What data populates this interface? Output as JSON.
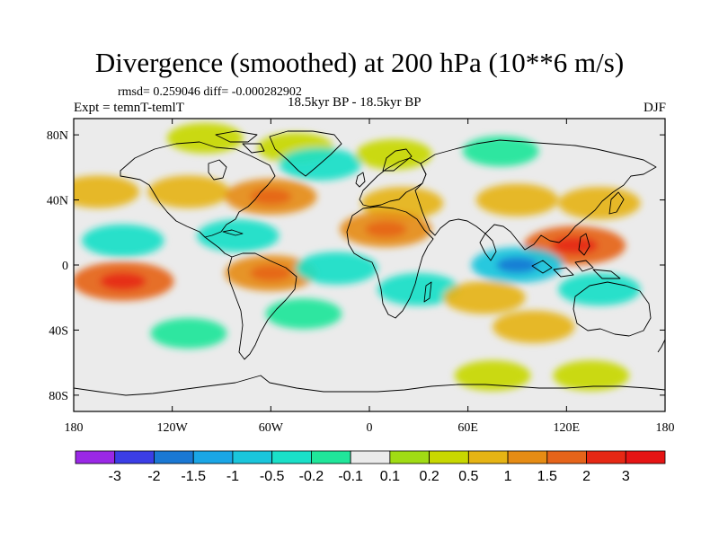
{
  "figure": {
    "title": "Divergence (smoothed) at 200 hPa (10**6 m/s)",
    "stats": "rmsd= 0.259046 diff= -0.000282902",
    "experiment": "Expt = temnT-temlT",
    "period": "18.5kyr BP - 18.5kyr BP",
    "season": "DJF"
  },
  "map": {
    "projection": "cylindrical equidistant",
    "lon_range": [
      -180,
      180
    ],
    "lat_range": [
      -90,
      90
    ],
    "lat_ticks": [
      {
        "label": "80N",
        "lat": 80
      },
      {
        "label": "40N",
        "lat": 40
      },
      {
        "label": "0",
        "lat": 0
      },
      {
        "label": "40S",
        "lat": -40
      },
      {
        "label": "80S",
        "lat": -80
      }
    ],
    "lon_ticks": [
      {
        "label": "180",
        "lon": -180
      },
      {
        "label": "120W",
        "lon": -120
      },
      {
        "label": "60W",
        "lon": -60
      },
      {
        "label": "0",
        "lon": 0
      },
      {
        "label": "60E",
        "lon": 60
      },
      {
        "label": "120E",
        "lon": 120
      },
      {
        "label": "180",
        "lon": 180
      }
    ],
    "background_color": "#ebebeb",
    "coastline_color": "#000000",
    "field_regions": [
      {
        "name": "greenland-high",
        "lon": -45,
        "lat": 72,
        "level": 0.2
      },
      {
        "name": "arctic-band",
        "lon": -100,
        "lat": 78,
        "level": 0.2
      },
      {
        "name": "north-atlantic-neg",
        "lon": -30,
        "lat": 62,
        "level": -0.5
      },
      {
        "name": "scandinavia-pos",
        "lon": 15,
        "lat": 68,
        "level": 0.2
      },
      {
        "name": "siberia-neg",
        "lon": 80,
        "lat": 70,
        "level": -0.2
      },
      {
        "name": "north-pacific-pos",
        "lon": -165,
        "lat": 45,
        "level": 0.5
      },
      {
        "name": "west-us-pos",
        "lon": -110,
        "lat": 45,
        "level": 0.5
      },
      {
        "name": "east-us-pos",
        "lon": -60,
        "lat": 42,
        "level": 1
      },
      {
        "name": "mediterranean-pos",
        "lon": 20,
        "lat": 38,
        "level": 0.5
      },
      {
        "name": "central-asia-pos",
        "lon": 90,
        "lat": 40,
        "level": 0.5
      },
      {
        "name": "west-pacific-pos",
        "lon": 140,
        "lat": 38,
        "level": 0.5
      },
      {
        "name": "east-pacific-neg",
        "lon": -150,
        "lat": 15,
        "level": -0.5
      },
      {
        "name": "caribbean-neg",
        "lon": -80,
        "lat": 18,
        "level": -0.5
      },
      {
        "name": "north-africa-pos",
        "lon": 10,
        "lat": 22,
        "level": 1
      },
      {
        "name": "maritime-continent-pos",
        "lon": 125,
        "lat": 12,
        "level": 1.5
      },
      {
        "name": "indian-ocean-neg",
        "lon": 90,
        "lat": 0,
        "level": -1
      },
      {
        "name": "amazon-pos",
        "lon": -60,
        "lat": -5,
        "level": 1
      },
      {
        "name": "atlantic-eq-neg",
        "lon": -20,
        "lat": -2,
        "level": -0.5
      },
      {
        "name": "south-pacific-pos",
        "lon": -150,
        "lat": -10,
        "level": 1.5
      },
      {
        "name": "southern-africa-neg",
        "lon": 30,
        "lat": -15,
        "level": -0.5
      },
      {
        "name": "indian-ocean-south-pos",
        "lon": 70,
        "lat": -20,
        "level": 0.5
      },
      {
        "name": "australia-neg",
        "lon": 140,
        "lat": -15,
        "level": -0.5
      },
      {
        "name": "south-atlantic-neg",
        "lon": -40,
        "lat": -30,
        "level": -0.2
      },
      {
        "name": "southern-ocean-pos",
        "lon": 100,
        "lat": -38,
        "level": 0.5
      },
      {
        "name": "southern-ocean-neg",
        "lon": -110,
        "lat": -42,
        "level": -0.2
      },
      {
        "name": "antarctic-pos",
        "lon": 75,
        "lat": -68,
        "level": 0.2
      },
      {
        "name": "antarctic-pos-2",
        "lon": 135,
        "lat": -68,
        "level": 0.2
      }
    ]
  },
  "colorbar": {
    "levels": [
      "-3",
      "-2",
      "-1.5",
      "-1",
      "-0.5",
      "-0.2",
      "-0.1",
      "0.1",
      "0.2",
      "0.5",
      "1",
      "1.5",
      "2",
      "3"
    ],
    "colors": [
      "#9a28e6",
      "#3b3ee6",
      "#1a78d4",
      "#1aa6e6",
      "#1ac6dc",
      "#1ae0c8",
      "#20e69a",
      "#ebebeb",
      "#a0dc14",
      "#c8d800",
      "#e6b414",
      "#e68c14",
      "#e6641a",
      "#e62814",
      "#e61414"
    ]
  }
}
